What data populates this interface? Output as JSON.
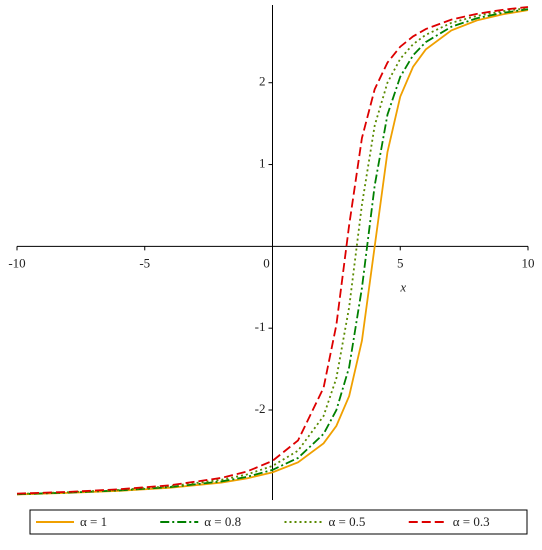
{
  "chart_data": {
    "type": "line",
    "x_label": "x",
    "x": [
      -10,
      -8,
      -6,
      -4,
      -2,
      -1,
      0,
      1,
      2,
      2.5,
      3,
      3.5,
      4,
      4.5,
      5,
      5.5,
      6,
      7,
      8,
      9,
      10
    ],
    "series": [
      {
        "name": "α = 1",
        "color": "#f0a000",
        "dash": "solid",
        "values": [
          -3.032,
          -3.013,
          -2.988,
          -2.95,
          -2.887,
          -2.836,
          -2.762,
          -2.64,
          -2.407,
          -2.194,
          -1.83,
          -1.153,
          0,
          1.153,
          1.83,
          2.194,
          2.407,
          2.64,
          2.762,
          2.836,
          2.887
        ]
      },
      {
        "name": "α = 0.8",
        "color": "#008000",
        "dash": "dashdot",
        "values": [
          -3.029,
          -3.01,
          -2.983,
          -2.942,
          -2.873,
          -2.817,
          -2.732,
          -2.586,
          -2.292,
          -2.001,
          -1.477,
          -0.509,
          0.744,
          1.61,
          2.073,
          2.335,
          2.497,
          2.684,
          2.788,
          2.853,
          2.899
        ]
      },
      {
        "name": "α = 0.5",
        "color": "#5a8a00",
        "dash": "dotted",
        "values": [
          -3.026,
          -3.005,
          -2.977,
          -2.932,
          -2.853,
          -2.788,
          -2.684,
          -2.497,
          -2.073,
          -1.61,
          -0.744,
          0.509,
          1.477,
          2.001,
          2.292,
          2.47,
          2.586,
          2.732,
          2.817,
          2.873,
          2.913
        ]
      },
      {
        "name": "α = 0.3",
        "color": "#dd0000",
        "dash": "dashed",
        "values": [
          -3.022,
          -3.001,
          -2.969,
          -2.92,
          -2.83,
          -2.752,
          -2.622,
          -2.372,
          -1.727,
          -0.959,
          0.259,
          1.324,
          1.921,
          2.246,
          2.44,
          2.566,
          2.656,
          2.771,
          2.842,
          2.891,
          2.926
        ]
      }
    ],
    "xlim": [
      -10,
      10
    ],
    "xticks": [
      -10,
      -5,
      0,
      5,
      10
    ],
    "ylim": [
      -3.1,
      2.95
    ],
    "yticks": [
      -2,
      -1,
      1,
      2
    ],
    "grid": false,
    "legend": "bottom"
  }
}
